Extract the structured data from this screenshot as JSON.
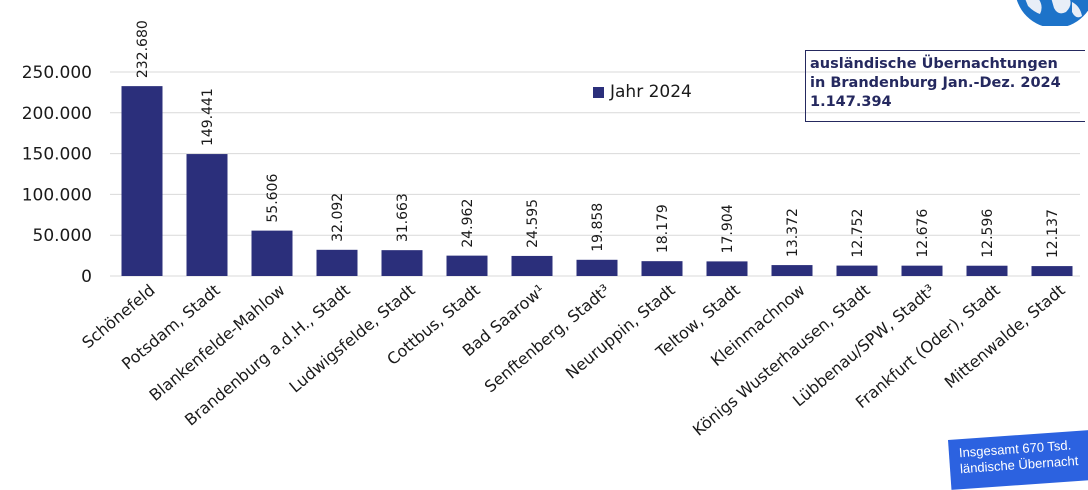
{
  "chart_data": {
    "type": "bar",
    "categories": [
      "Schönefeld",
      "Potsdam, Stadt",
      "Blankenfelde-Mahlow",
      "Brandenburg a.d.H., Stadt",
      "Ludwigsfelde, Stadt",
      "Cottbus, Stadt",
      "Bad Saarow¹",
      "Senftenberg, Stadt³",
      "Neuruppin, Stadt",
      "Teltow, Stadt",
      "Kleinmachnow",
      "Königs Wusterhausen, Stadt",
      "Lübbenau/SPW, Stadt³",
      "Frankfurt (Oder), Stadt",
      "Mittenwalde, Stadt"
    ],
    "series": [
      {
        "name": "Jahr 2024",
        "color": "#2b2f7b",
        "values": [
          232680,
          149441,
          55606,
          32092,
          31663,
          24962,
          24595,
          19858,
          18179,
          17904,
          13372,
          12752,
          12676,
          12596,
          12137
        ],
        "labels": [
          "232.680",
          "149.441",
          "55.606",
          "32.092",
          "31.663",
          "24.962",
          "24.595",
          "19.858",
          "18.179",
          "17.904",
          "13.372",
          "12.752",
          "12.676",
          "12.596",
          "12.137"
        ]
      }
    ],
    "ylim": [
      0,
      250000
    ],
    "yticks": [
      0,
      50000,
      100000,
      150000,
      200000,
      250000
    ],
    "ytick_labels": [
      "0",
      "50.000",
      "100.000",
      "150.000",
      "200.000",
      "250.000"
    ],
    "grid": true,
    "legend_position": "top-center",
    "title": "",
    "xlabel": "",
    "ylabel": ""
  },
  "legend": {
    "label": "Jahr 2024",
    "color": "#2b2f7b"
  },
  "infobox": {
    "line1": "ausländische Übernachtungen",
    "line2": "in Brandenburg Jan.-Dez. 2024",
    "line3": "1.147.394"
  },
  "note": {
    "line1": "Insgesamt 670 Tsd.",
    "line2": "ländische Übernacht"
  }
}
